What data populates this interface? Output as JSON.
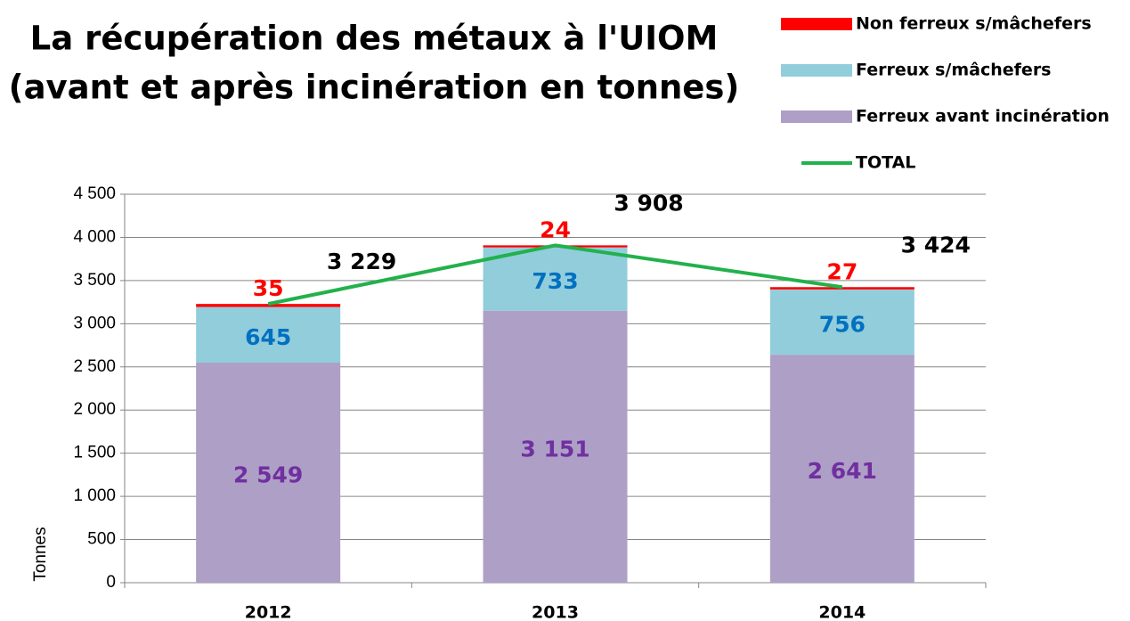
{
  "chart_data": {
    "type": "stacked_bar_line",
    "title": [
      "La récupération des métaux à l'UIOM",
      "(avant et après incinération en tonnes)"
    ],
    "y_label": "Tonnes",
    "categories": [
      "2012",
      "2013",
      "2014"
    ],
    "series": [
      {
        "name": "Ferreux avant incinération",
        "type": "bar",
        "color": "#ae9fc6",
        "label_color": "#7030a0",
        "values": [
          2549,
          3151,
          2641
        ],
        "value_labels": [
          "2 549",
          "3 151",
          "2 641"
        ]
      },
      {
        "name": "Ferreux s/mâchefers",
        "type": "bar",
        "color": "#92cddc",
        "label_color": "#0070c0",
        "values": [
          645,
          733,
          756
        ]
      },
      {
        "name": "Non ferreux s/mâchefers",
        "type": "bar",
        "color": "#ff0000",
        "label_color": "#ff0000",
        "values": [
          35,
          24,
          27
        ]
      },
      {
        "name": "TOTAL",
        "type": "line",
        "color": "#22b14c",
        "label_color": "#000000",
        "values": [
          3229,
          3908,
          3424
        ],
        "value_labels": [
          "3 229",
          "3 908",
          "3 424"
        ]
      }
    ],
    "legend_order": [
      2,
      1,
      0,
      3
    ],
    "legend_position": "top-right",
    "ylim": [
      0,
      4500
    ],
    "yticks": [
      0,
      500,
      {
        "value": 1000,
        "label": "1 000"
      },
      {
        "value": 1500,
        "label": "1 500"
      },
      {
        "value": 2000,
        "label": "2 000"
      },
      {
        "value": 2500,
        "label": "2 500"
      },
      {
        "value": 3000,
        "label": "3 000"
      },
      {
        "value": 3500,
        "label": "3 500"
      },
      {
        "value": 4000,
        "label": "4 000"
      },
      {
        "value": 4500,
        "label": "4 500"
      }
    ],
    "grid": true
  }
}
